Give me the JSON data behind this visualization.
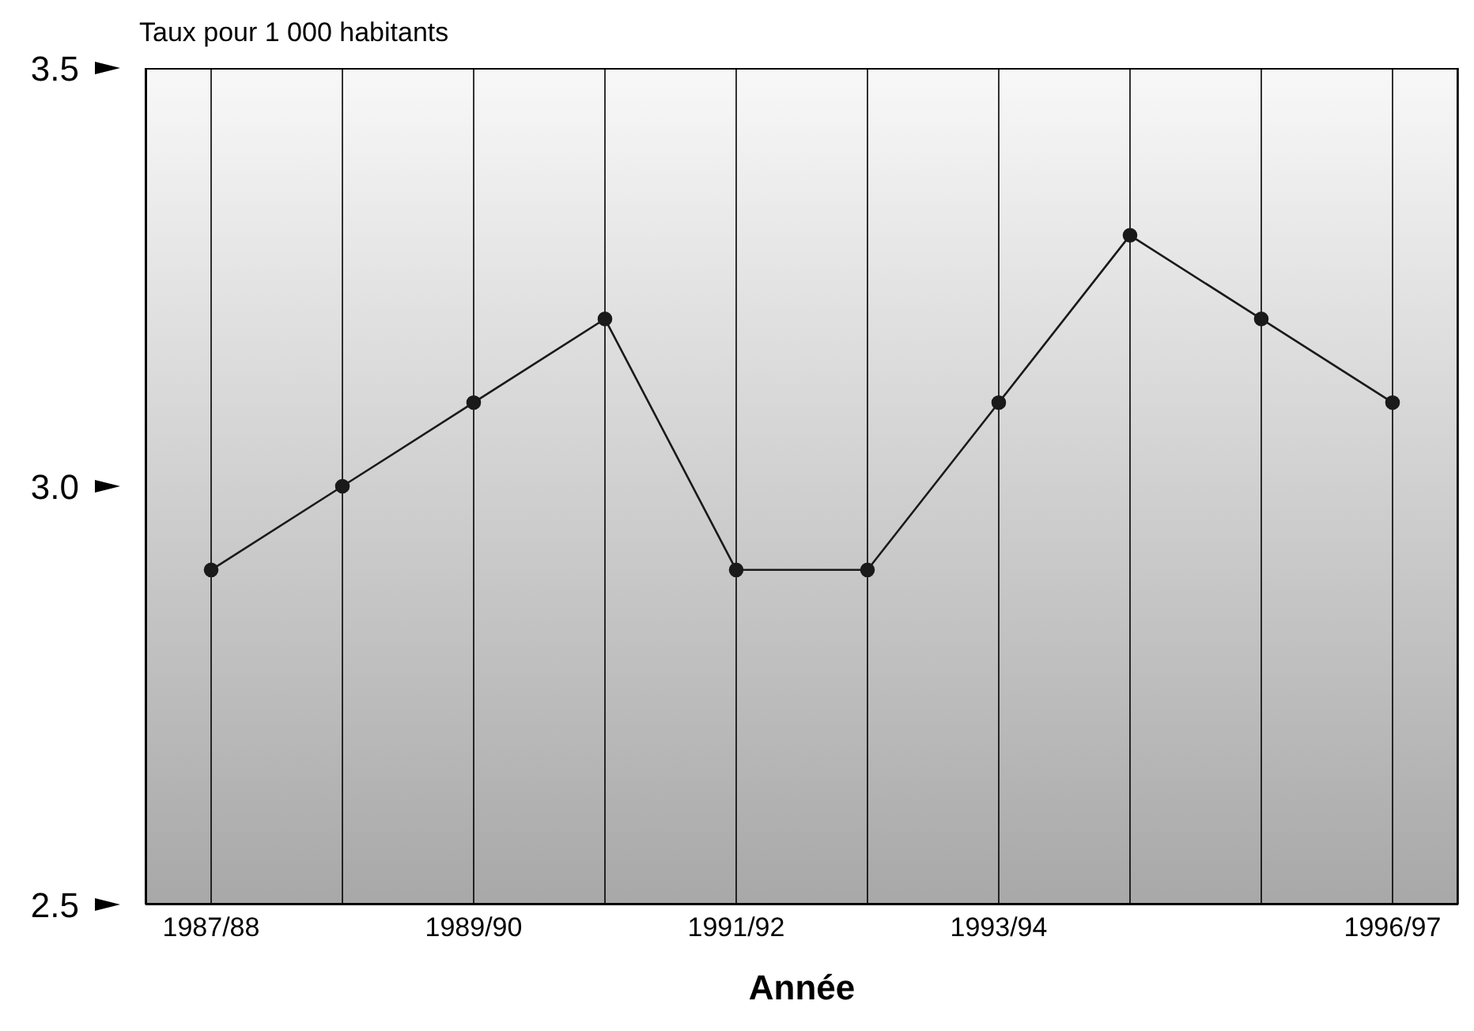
{
  "chart_data": {
    "type": "line",
    "ylabel": "Taux pour 1 000 habitants",
    "xlabel": "Année",
    "categories": [
      "1987/88",
      null,
      "1989/90",
      null,
      "1991/92",
      null,
      "1993/94",
      null,
      null,
      "1996/97"
    ],
    "series": [
      {
        "color": "#1a1a1a",
        "values": [
          2.9,
          3.0,
          3.1,
          3.2,
          2.9,
          2.9,
          3.1,
          3.3,
          3.2,
          3.1
        ]
      }
    ],
    "ylim": [
      2.5,
      3.5
    ],
    "yticks": [
      2.5,
      {
        "value": 3,
        "label": "3.0"
      },
      3.5
    ],
    "grid": "x",
    "marker": "circle",
    "line_style": "solid"
  }
}
